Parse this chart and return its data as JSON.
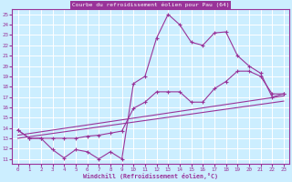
{
  "title": "Courbe du refroidissement éolien pour Pau (64)",
  "xlabel": "Windchill (Refroidissement éolien,°C)",
  "line_color": "#993399",
  "bg_color": "#cceeff",
  "grid_color": "#ffffff",
  "xlim": [
    -0.5,
    23.5
  ],
  "ylim": [
    10.5,
    25.5
  ],
  "xticks": [
    0,
    1,
    2,
    3,
    4,
    5,
    6,
    7,
    8,
    9,
    10,
    11,
    12,
    13,
    14,
    15,
    16,
    17,
    18,
    19,
    20,
    21,
    22,
    23
  ],
  "yticks": [
    11,
    12,
    13,
    14,
    15,
    16,
    17,
    18,
    19,
    20,
    21,
    22,
    23,
    24,
    25
  ],
  "curve1_x": [
    0,
    1,
    2,
    3,
    4,
    5,
    6,
    7,
    8,
    9,
    10,
    11,
    12,
    13,
    14,
    15,
    16,
    17,
    18,
    19,
    20,
    21,
    22,
    23
  ],
  "curve1_y": [
    13.8,
    13.0,
    13.0,
    11.9,
    11.1,
    11.9,
    11.7,
    11.0,
    11.7,
    11.0,
    18.3,
    19.0,
    22.7,
    25.0,
    24.0,
    22.3,
    22.0,
    23.2,
    23.3,
    21.0,
    20.0,
    19.3,
    17.0,
    17.3
  ],
  "curve2_x": [
    0,
    1,
    2,
    3,
    4,
    5,
    6,
    7,
    8,
    9,
    10,
    11,
    12,
    13,
    14,
    15,
    16,
    17,
    18,
    19,
    20,
    21,
    22,
    23
  ],
  "curve2_y": [
    13.8,
    13.0,
    13.0,
    13.0,
    13.0,
    13.0,
    13.2,
    13.3,
    13.5,
    13.7,
    15.9,
    16.5,
    17.5,
    17.5,
    17.5,
    16.5,
    16.5,
    17.8,
    18.5,
    19.5,
    19.5,
    19.0,
    17.3,
    17.3
  ],
  "trend1_x": [
    0,
    23
  ],
  "trend1_y": [
    13.3,
    17.1
  ],
  "trend2_x": [
    0,
    23
  ],
  "trend2_y": [
    13.0,
    16.6
  ]
}
